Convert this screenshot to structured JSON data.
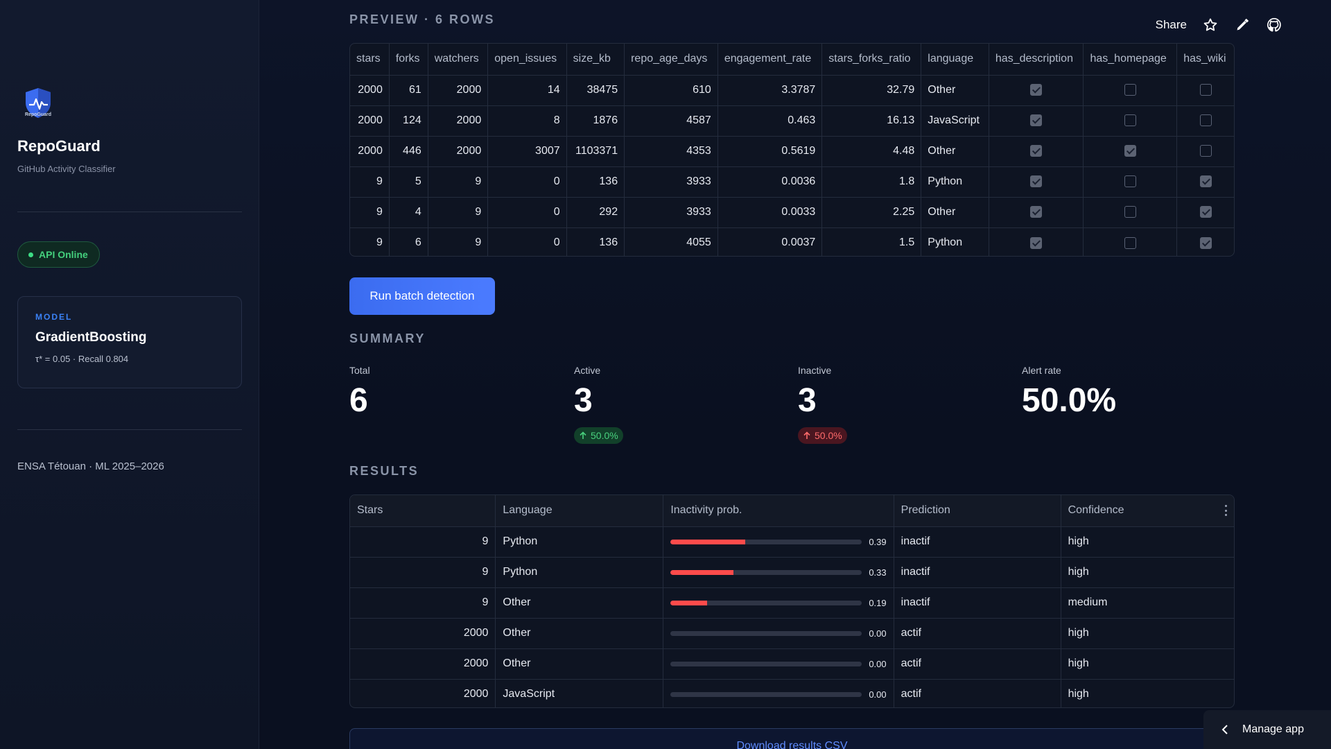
{
  "sidebar": {
    "logo_text": "RepoGuard",
    "app_name": "RepoGuard",
    "app_subtitle": "GitHub Activity Classifier",
    "status": "API Online",
    "model": {
      "caption": "MODEL",
      "name": "GradientBoosting",
      "meta": "τ* = 0.05 · Recall 0.804"
    },
    "footer": "ENSA Tétouan · ML 2025–2026"
  },
  "header": {
    "share_label": "Share"
  },
  "preview": {
    "title": "PREVIEW · 6 ROWS",
    "columns": [
      "stars",
      "forks",
      "watchers",
      "open_issues",
      "size_kb",
      "repo_age_days",
      "engagement_rate",
      "stars_forks_ratio",
      "language",
      "has_description",
      "has_homepage",
      "has_wiki"
    ],
    "rows": [
      [
        "2000",
        "61",
        "2000",
        "14",
        "38475",
        "610",
        "3.3787",
        "32.79",
        "Other",
        true,
        false,
        false
      ],
      [
        "2000",
        "124",
        "2000",
        "8",
        "1876",
        "4587",
        "0.463",
        "16.13",
        "JavaScript",
        true,
        false,
        false
      ],
      [
        "2000",
        "446",
        "2000",
        "3007",
        "1103371",
        "4353",
        "0.5619",
        "4.48",
        "Other",
        true,
        true,
        false
      ],
      [
        "9",
        "5",
        "9",
        "0",
        "136",
        "3933",
        "0.0036",
        "1.8",
        "Python",
        true,
        false,
        true
      ],
      [
        "9",
        "4",
        "9",
        "0",
        "292",
        "3933",
        "0.0033",
        "2.25",
        "Other",
        true,
        false,
        true
      ],
      [
        "9",
        "6",
        "9",
        "0",
        "136",
        "4055",
        "0.0037",
        "1.5",
        "Python",
        true,
        false,
        true
      ]
    ]
  },
  "actions": {
    "run_label": "Run batch detection",
    "download_label": "Download results CSV",
    "manage_label": "Manage app"
  },
  "summary": {
    "title": "SUMMARY",
    "total_label": "Total",
    "total_value": "6",
    "active_label": "Active",
    "active_value": "3",
    "active_delta": "50.0%",
    "inactive_label": "Inactive",
    "inactive_value": "3",
    "inactive_delta": "50.0%",
    "alert_label": "Alert rate",
    "alert_value": "50.0%"
  },
  "results": {
    "title": "RESULTS",
    "columns": [
      "Stars",
      "Language",
      "Inactivity prob.",
      "Prediction",
      "Confidence"
    ],
    "rows": [
      {
        "stars": "9",
        "language": "Python",
        "prob": 0.39,
        "prob_label": "0.39",
        "prediction": "inactif",
        "confidence": "high"
      },
      {
        "stars": "9",
        "language": "Python",
        "prob": 0.33,
        "prob_label": "0.33",
        "prediction": "inactif",
        "confidence": "high"
      },
      {
        "stars": "9",
        "language": "Other",
        "prob": 0.19,
        "prob_label": "0.19",
        "prediction": "inactif",
        "confidence": "medium"
      },
      {
        "stars": "2000",
        "language": "Other",
        "prob": 0.0,
        "prob_label": "0.00",
        "prediction": "actif",
        "confidence": "high"
      },
      {
        "stars": "2000",
        "language": "Other",
        "prob": 0.0,
        "prob_label": "0.00",
        "prediction": "actif",
        "confidence": "high"
      },
      {
        "stars": "2000",
        "language": "JavaScript",
        "prob": 0.0,
        "prob_label": "0.00",
        "prediction": "actif",
        "confidence": "high"
      }
    ]
  },
  "colors": {
    "accent": "#3b82f6",
    "danger": "#ff4b4b",
    "success": "#44d07d"
  }
}
